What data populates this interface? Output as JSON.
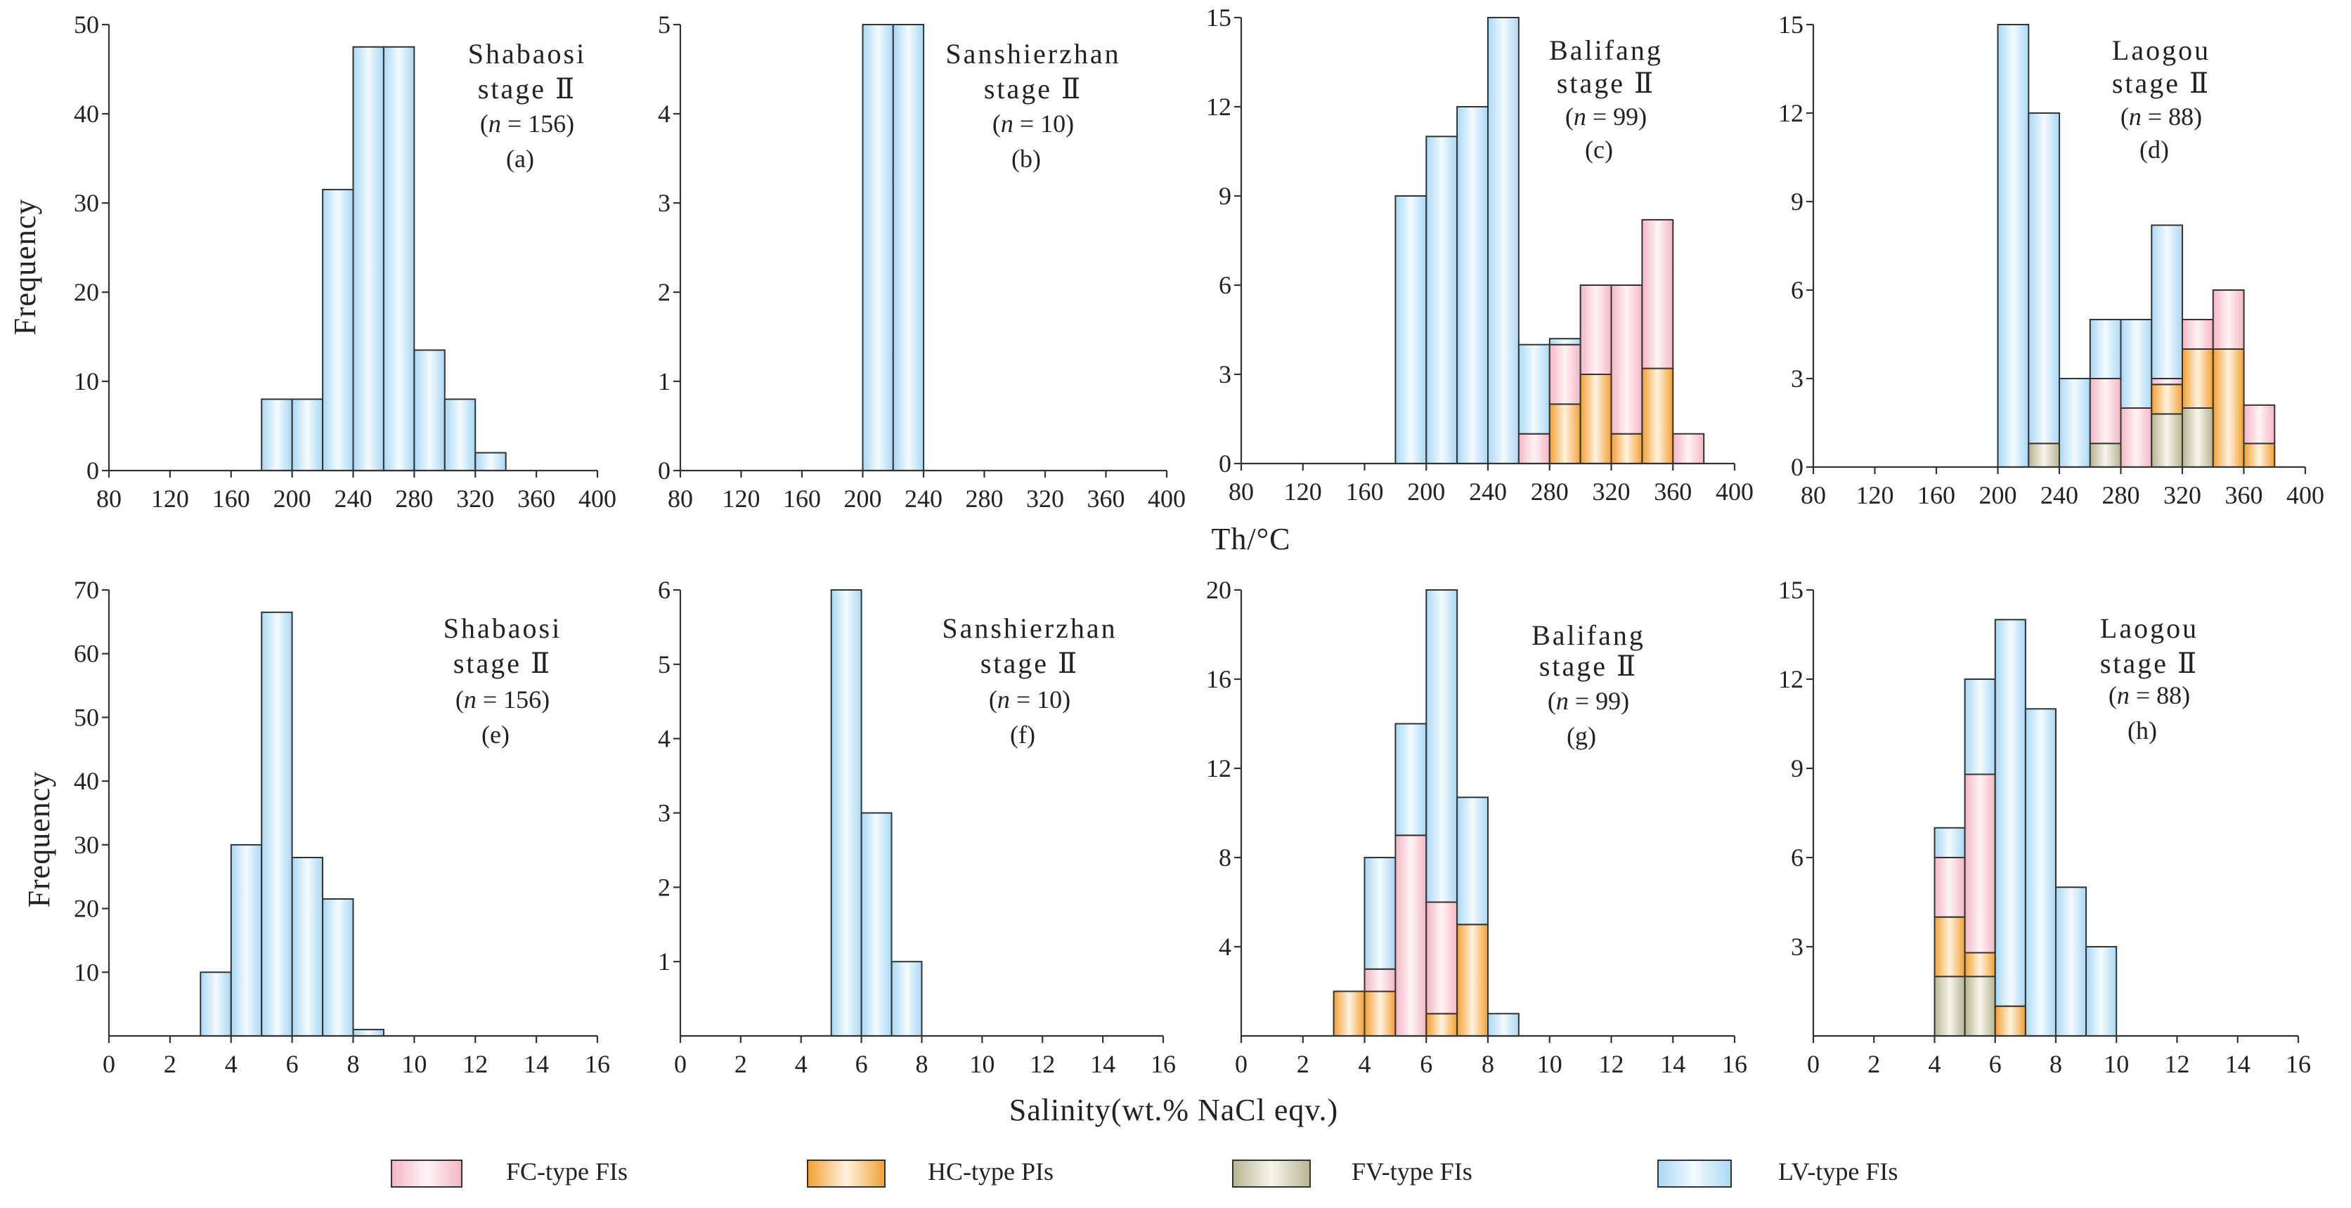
{
  "colors": {
    "LV": "#bfe3f7",
    "FC": "#f8ccd6",
    "HC": "#f6b35a",
    "FV": "#cfcdb4"
  },
  "axis_titles": {
    "freq_top": "Frequency",
    "freq_bottom": "Frequency",
    "th": "Th/°C",
    "salinity": "Salinity(wt.% NaCl eqv.)"
  },
  "legend": [
    {
      "key": "FC",
      "label": "FC-type FIs"
    },
    {
      "key": "HC",
      "label": "HC-type PIs"
    },
    {
      "key": "FV",
      "label": "FV-type FIs"
    },
    {
      "key": "LV",
      "label": "LV-type FIs"
    }
  ],
  "panels": [
    {
      "name": "Shabaosi",
      "stage": "stage Ⅱ",
      "n": "156",
      "letter": "(a)"
    },
    {
      "name": "Sanshierzhan",
      "stage": "stage Ⅱ",
      "n": "10",
      "letter": "(b)"
    },
    {
      "name": "Balifang",
      "stage": "stage Ⅱ",
      "n": "99",
      "letter": "(c)"
    },
    {
      "name": "Laogou",
      "stage": "stage Ⅱ",
      "n": "88",
      "letter": "(d)"
    },
    {
      "name": "Shabaosi",
      "stage": "stage Ⅱ",
      "n": "156",
      "letter": "(e)"
    },
    {
      "name": "Sanshierzhan",
      "stage": "stage Ⅱ",
      "n": "10",
      "letter": "(f)"
    },
    {
      "name": "Balifang",
      "stage": "stage Ⅱ",
      "n": "99",
      "letter": "(g)"
    },
    {
      "name": "Laogou",
      "stage": "stage Ⅱ",
      "n": "88",
      "letter": "(h)"
    }
  ],
  "chart_data": [
    {
      "type": "bar",
      "stacked": true,
      "panel": "(a)",
      "title": "Shabaosi stage Ⅱ (n = 156)",
      "xlabel": "Th/°C",
      "ylabel": "Frequency",
      "xlim": [
        80,
        400
      ],
      "ylim": [
        0,
        50
      ],
      "bin_width": 20,
      "xticks": [
        80,
        120,
        160,
        200,
        240,
        280,
        320,
        360,
        400
      ],
      "yticks": [
        0,
        10,
        20,
        30,
        40,
        50
      ],
      "bins": [
        {
          "x": 180,
          "LV": 8
        },
        {
          "x": 200,
          "LV": 8
        },
        {
          "x": 220,
          "LV": 31.5
        },
        {
          "x": 240,
          "LV": 47.5
        },
        {
          "x": 260,
          "LV": 47.5
        },
        {
          "x": 280,
          "LV": 13.5
        },
        {
          "x": 300,
          "LV": 8
        },
        {
          "x": 320,
          "LV": 2
        }
      ]
    },
    {
      "type": "bar",
      "stacked": true,
      "panel": "(b)",
      "title": "Sanshierzhan stage Ⅱ (n = 10)",
      "xlabel": "Th/°C",
      "ylabel": "Frequency",
      "xlim": [
        80,
        400
      ],
      "ylim": [
        0,
        5
      ],
      "bin_width": 20,
      "xticks": [
        80,
        120,
        160,
        200,
        240,
        280,
        320,
        360,
        400
      ],
      "yticks": [
        0,
        1,
        2,
        3,
        4,
        5
      ],
      "bins": [
        {
          "x": 200,
          "LV": 5
        },
        {
          "x": 220,
          "LV": 5
        }
      ]
    },
    {
      "type": "bar",
      "stacked": true,
      "panel": "(c)",
      "title": "Balifang stage Ⅱ (n = 99)",
      "xlabel": "Th/°C",
      "ylabel": "Frequency",
      "xlim": [
        80,
        400
      ],
      "ylim": [
        0,
        15
      ],
      "bin_width": 20,
      "xticks": [
        80,
        120,
        160,
        200,
        240,
        280,
        320,
        360,
        400
      ],
      "yticks": [
        0,
        3,
        6,
        9,
        12,
        15
      ],
      "bins": [
        {
          "x": 180,
          "LV": 9
        },
        {
          "x": 200,
          "LV": 11
        },
        {
          "x": 220,
          "LV": 12
        },
        {
          "x": 240,
          "LV": 15
        },
        {
          "x": 260,
          "FC": 1,
          "LV": 3
        },
        {
          "x": 280,
          "FC": 2,
          "HC": 2,
          "LV": 0.2
        },
        {
          "x": 300,
          "HC": 3,
          "FC": 3
        },
        {
          "x": 320,
          "FC": 5,
          "HC": 1
        },
        {
          "x": 340,
          "FC": 5,
          "HC": 3.2
        },
        {
          "x": 360,
          "FC": 1
        }
      ]
    },
    {
      "type": "bar",
      "stacked": true,
      "panel": "(d)",
      "title": "Laogou stage Ⅱ (n = 88)",
      "xlabel": "Th/°C",
      "ylabel": "Frequency",
      "xlim": [
        80,
        400
      ],
      "ylim": [
        0,
        15
      ],
      "bin_width": 20,
      "xticks": [
        80,
        120,
        160,
        200,
        240,
        280,
        320,
        360,
        400
      ],
      "yticks": [
        0,
        3,
        6,
        9,
        12,
        15
      ],
      "bins": [
        {
          "x": 200,
          "LV": 15
        },
        {
          "x": 220,
          "FV": 0.8,
          "LV": 11.2
        },
        {
          "x": 240,
          "LV": 3
        },
        {
          "x": 260,
          "FV": 0.8,
          "FC": 2.2,
          "LV": 2
        },
        {
          "x": 280,
          "LV": 3,
          "FC": 2
        },
        {
          "x": 300,
          "FV": 1.8,
          "FC": 0.2,
          "HC": 1,
          "LV": 5.2
        },
        {
          "x": 320,
          "FV": 2,
          "FC": 1,
          "HC": 2
        },
        {
          "x": 340,
          "FC": 2,
          "HC": 4
        },
        {
          "x": 360,
          "HC": 0.8,
          "FC": 1.3
        }
      ]
    },
    {
      "type": "bar",
      "stacked": true,
      "panel": "(e)",
      "title": "Shabaosi stage Ⅱ (n = 156)",
      "xlabel": "Salinity(wt.% NaCl eqv.)",
      "ylabel": "Frequency",
      "xlim": [
        0,
        16
      ],
      "ylim": [
        0,
        70
      ],
      "bin_width": 1,
      "xticks": [
        0,
        2,
        4,
        6,
        8,
        10,
        12,
        14,
        16
      ],
      "yticks": [
        10,
        20,
        30,
        40,
        50,
        60,
        70
      ],
      "bins": [
        {
          "x": 3,
          "LV": 10
        },
        {
          "x": 4,
          "LV": 30
        },
        {
          "x": 5,
          "LV": 66.5
        },
        {
          "x": 6,
          "LV": 28
        },
        {
          "x": 7,
          "LV": 21.5
        },
        {
          "x": 8,
          "LV": 1
        }
      ]
    },
    {
      "type": "bar",
      "stacked": true,
      "panel": "(f)",
      "title": "Sanshierzhan stage Ⅱ (n = 10)",
      "xlabel": "Salinity(wt.% NaCl eqv.)",
      "ylabel": "Frequency",
      "xlim": [
        0,
        16
      ],
      "ylim": [
        0,
        6
      ],
      "bin_width": 1,
      "xticks": [
        0,
        2,
        4,
        6,
        8,
        10,
        12,
        14,
        16
      ],
      "yticks": [
        1,
        2,
        3,
        4,
        5,
        6
      ],
      "bins": [
        {
          "x": 5,
          "LV": 6
        },
        {
          "x": 6,
          "LV": 3
        },
        {
          "x": 7,
          "LV": 1
        }
      ]
    },
    {
      "type": "bar",
      "stacked": true,
      "panel": "(g)",
      "title": "Balifang stage Ⅱ (n = 99)",
      "xlabel": "Salinity(wt.% NaCl eqv.)",
      "ylabel": "Frequency",
      "xlim": [
        0,
        16
      ],
      "ylim": [
        0,
        20
      ],
      "bin_width": 1,
      "xticks": [
        0,
        2,
        4,
        6,
        8,
        10,
        12,
        14,
        16
      ],
      "yticks": [
        4,
        8,
        12,
        16,
        20
      ],
      "bins": [
        {
          "x": 3,
          "HC": 2
        },
        {
          "x": 4,
          "LV": 5,
          "FC": 1,
          "HC": 2
        },
        {
          "x": 5,
          "FC": 9,
          "LV": 5
        },
        {
          "x": 6,
          "FC": 5,
          "HC": 1,
          "LV": 14
        },
        {
          "x": 7,
          "HC": 5,
          "LV": 5.7
        },
        {
          "x": 8,
          "LV": 1
        }
      ]
    },
    {
      "type": "bar",
      "stacked": true,
      "panel": "(h)",
      "title": "Laogou stage Ⅱ (n = 88)",
      "xlabel": "Salinity(wt.% NaCl eqv.)",
      "ylabel": "Frequency",
      "xlim": [
        0,
        16
      ],
      "ylim": [
        0,
        15
      ],
      "bin_width": 1,
      "xticks": [
        0,
        2,
        4,
        6,
        8,
        10,
        12,
        14,
        16
      ],
      "yticks": [
        3,
        6,
        9,
        12,
        15
      ],
      "bins": [
        {
          "x": 4,
          "HC": 2,
          "FV": 2,
          "LV": 1,
          "FC": 2
        },
        {
          "x": 5,
          "FV": 2,
          "FC": 6,
          "LV": 3.2,
          "HC": 0.8
        },
        {
          "x": 6,
          "HC": 1,
          "LV": 13
        },
        {
          "x": 7,
          "LV": 11
        },
        {
          "x": 8,
          "LV": 5
        },
        {
          "x": 9,
          "LV": 3
        }
      ]
    }
  ]
}
